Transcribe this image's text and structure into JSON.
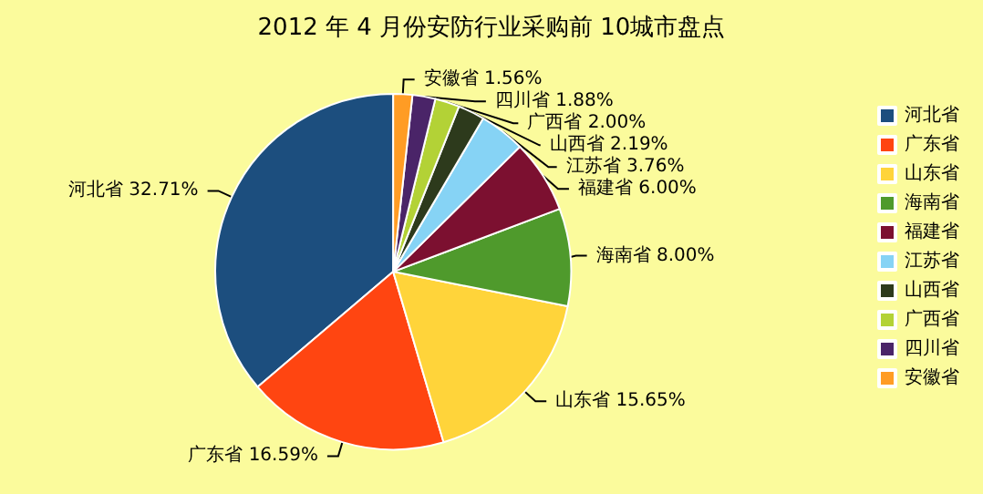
{
  "chart_data": {
    "type": "pie",
    "title": "2012 年 4 月份安防行业采购前 10城市盘点",
    "categories": [
      "河北省",
      "广东省",
      "山东省",
      "海南省",
      "福建省",
      "江苏省",
      "山西省",
      "广西省",
      "四川省",
      "安徽省"
    ],
    "values": [
      32.71,
      16.59,
      15.65,
      8.0,
      6.0,
      3.76,
      2.19,
      2.0,
      1.88,
      1.56
    ],
    "value_labels": [
      "32.71%",
      "16.59%",
      "15.65%",
      "8.00%",
      "6.00%",
      "3.76%",
      "2.19%",
      "2.00%",
      "1.88%",
      "1.56%"
    ],
    "colors": [
      "#1c4e7e",
      "#ff4511",
      "#ffd43a",
      "#4f9a2c",
      "#7c1030",
      "#86d3f5",
      "#2d3a1c",
      "#b3d236",
      "#4a2468",
      "#ff9c24"
    ],
    "legend": "right"
  }
}
